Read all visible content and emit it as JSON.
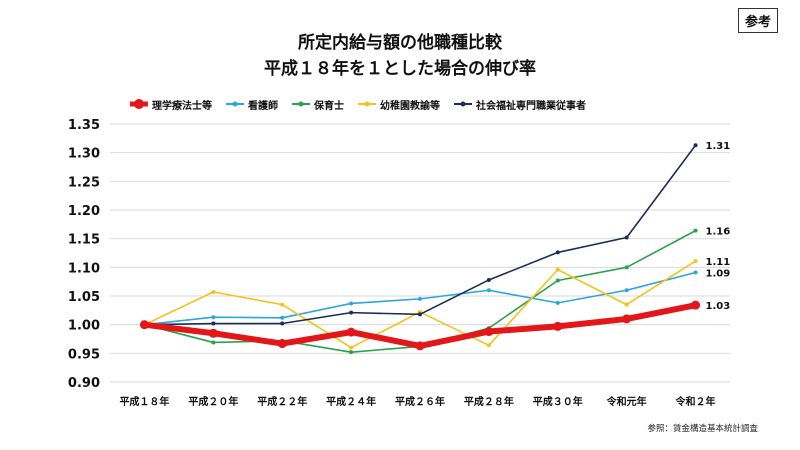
{
  "badge": "参考",
  "title_lines": [
    "所定内給与額の他職種比較",
    "平成１８年を１とした場合の伸び率"
  ],
  "source": "参照：賃金構造基本統計調査",
  "chart_data": {
    "type": "line",
    "categories": [
      "平成１８年",
      "平成２０年",
      "平成２２年",
      "平成２４年",
      "平成２６年",
      "平成２８年",
      "平成３０年",
      "令和元年",
      "令和２年"
    ],
    "ylim": [
      0.9,
      1.35
    ],
    "yticks": [
      "0.90",
      "0.95",
      "1.00",
      "1.05",
      "1.10",
      "1.15",
      "1.20",
      "1.25",
      "1.30",
      "1.35"
    ],
    "grid": true,
    "legend": "top",
    "series": [
      {
        "name": "理学療法士等",
        "color": "#e3161a",
        "values": [
          1.0,
          0.985,
          0.967,
          0.987,
          0.963,
          0.988,
          0.997,
          1.01,
          1.034
        ],
        "end_label": "1.03",
        "width": 6,
        "dot": 4.5
      },
      {
        "name": "看護師",
        "color": "#2ea6da",
        "values": [
          1.0,
          1.013,
          1.012,
          1.037,
          1.045,
          1.06,
          1.038,
          1.06,
          1.091
        ],
        "end_label": "1.09",
        "width": 1.6,
        "dot": 2
      },
      {
        "name": "保育士",
        "color": "#2aa24a",
        "values": [
          1.0,
          0.969,
          0.972,
          0.952,
          0.962,
          0.994,
          1.077,
          1.1,
          1.164
        ],
        "end_label": "1.16",
        "width": 1.6,
        "dot": 2
      },
      {
        "name": "幼稚園教諭等",
        "color": "#f2c31a",
        "values": [
          1.0,
          1.057,
          1.035,
          0.96,
          1.022,
          0.964,
          1.096,
          1.035,
          1.111
        ],
        "end_label": "1.11",
        "width": 1.6,
        "dot": 2
      },
      {
        "name": "社会福祉専門職業従事者",
        "color": "#1c2e57",
        "values": [
          1.0,
          1.002,
          1.002,
          1.021,
          1.018,
          1.078,
          1.126,
          1.152,
          1.313
        ],
        "end_label": "1.31",
        "width": 1.6,
        "dot": 2
      }
    ]
  }
}
